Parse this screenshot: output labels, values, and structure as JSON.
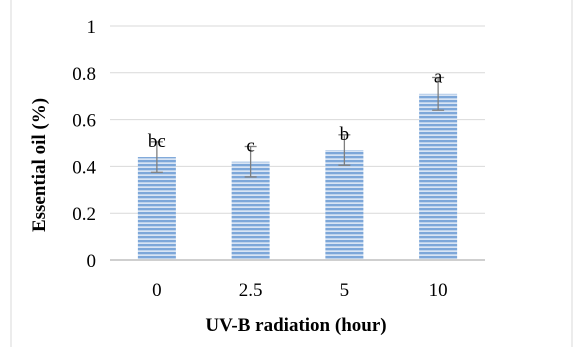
{
  "chart_data": {
    "type": "bar",
    "categories": [
      "0",
      "2.5",
      "5",
      "10"
    ],
    "values": [
      0.44,
      0.42,
      0.47,
      0.71
    ],
    "error": [
      0.065,
      0.065,
      0.065,
      0.07
    ],
    "significance": [
      "bc",
      "c",
      "b",
      "a"
    ],
    "xlabel": "UV-B radiation (hour)",
    "ylabel": "Essential oil (%)",
    "ylim": [
      0,
      1
    ],
    "yticks": [
      "0",
      "0.2",
      "0.4",
      "0.6",
      "0.8",
      "1"
    ],
    "grid": true,
    "bar_color": "#7da7d9",
    "stripe_color": "#ffffff",
    "errorbar_color": "#7f7f7f",
    "grid_color": "#d9d9d9"
  }
}
